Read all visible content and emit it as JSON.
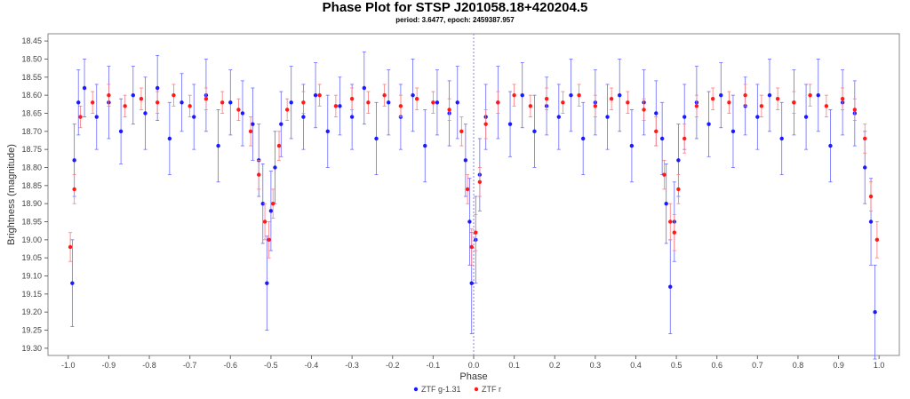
{
  "chart_data": {
    "type": "scatter",
    "title": "Phase Plot for STSP J201058.18+420204.5",
    "subtitle": "period: 3.6477, epoch: 2459387.957",
    "xlabel": "Phase",
    "ylabel": "Brightness (magnitude)",
    "xlim": [
      -1.05,
      1.05
    ],
    "ylim": [
      19.32,
      18.43
    ],
    "y_inverted": true,
    "x_ticks": [
      -1.0,
      -0.9,
      -0.8,
      -0.7,
      -0.6,
      -0.5,
      -0.4,
      -0.3,
      -0.2,
      -0.1,
      0.0,
      0.1,
      0.2,
      0.3,
      0.4,
      0.5,
      0.6,
      0.7,
      0.8,
      0.9,
      1.0
    ],
    "x_tick_labels": [
      "-1.0",
      "-0.9",
      "-0.8",
      "-0.7",
      "-0.6",
      "-0.5",
      "-0.4",
      "-0.3",
      "-0.2",
      "-0.1",
      "0.0",
      "0.1",
      "0.2",
      "0.3",
      "0.4",
      "0.5",
      "0.6",
      "0.7",
      "0.8",
      "0.9",
      "1.0"
    ],
    "y_ticks": [
      18.45,
      18.5,
      18.55,
      18.6,
      18.65,
      18.7,
      18.75,
      18.8,
      18.85,
      18.9,
      18.95,
      19.0,
      19.05,
      19.1,
      19.15,
      19.2,
      19.25,
      19.3
    ],
    "y_tick_labels": [
      "18.45",
      "18.50",
      "18.55",
      "18.60",
      "18.65",
      "18.70",
      "18.75",
      "18.80",
      "18.85",
      "18.90",
      "18.95",
      "19.00",
      "19.05",
      "19.10",
      "19.15",
      "19.20",
      "19.25",
      "19.30"
    ],
    "reference_line_x": 0.0,
    "legend_position": "bottom-center",
    "series": [
      {
        "name": "ZTF g-1.31",
        "color": "#1a1aff",
        "errorbar_color": "#6a6aff",
        "points": [
          [
            -0.99,
            19.12,
            0.12
          ],
          [
            -0.985,
            18.78,
            0.1
          ],
          [
            -0.975,
            18.62,
            0.09
          ],
          [
            -0.96,
            18.58,
            0.08
          ],
          [
            -0.93,
            18.66,
            0.09
          ],
          [
            -0.9,
            18.62,
            0.1
          ],
          [
            -0.87,
            18.7,
            0.09
          ],
          [
            -0.84,
            18.6,
            0.08
          ],
          [
            -0.81,
            18.65,
            0.1
          ],
          [
            -0.78,
            18.58,
            0.09
          ],
          [
            -0.75,
            18.72,
            0.1
          ],
          [
            -0.72,
            18.62,
            0.08
          ],
          [
            -0.69,
            18.66,
            0.09
          ],
          [
            -0.66,
            18.6,
            0.1
          ],
          [
            -0.63,
            18.74,
            0.1
          ],
          [
            -0.6,
            18.62,
            0.09
          ],
          [
            -0.57,
            18.65,
            0.09
          ],
          [
            -0.545,
            18.68,
            0.1
          ],
          [
            -0.53,
            18.78,
            0.1
          ],
          [
            -0.52,
            18.9,
            0.11
          ],
          [
            -0.51,
            19.12,
            0.13
          ],
          [
            -0.5,
            18.92,
            0.11
          ],
          [
            -0.49,
            18.8,
            0.1
          ],
          [
            -0.475,
            18.68,
            0.09
          ],
          [
            -0.45,
            18.62,
            0.1
          ],
          [
            -0.42,
            18.66,
            0.09
          ],
          [
            -0.39,
            18.6,
            0.09
          ],
          [
            -0.36,
            18.7,
            0.1
          ],
          [
            -0.33,
            18.63,
            0.08
          ],
          [
            -0.3,
            18.66,
            0.09
          ],
          [
            -0.27,
            18.58,
            0.1
          ],
          [
            -0.24,
            18.72,
            0.1
          ],
          [
            -0.21,
            18.62,
            0.09
          ],
          [
            -0.18,
            18.66,
            0.09
          ],
          [
            -0.15,
            18.6,
            0.1
          ],
          [
            -0.12,
            18.74,
            0.1
          ],
          [
            -0.09,
            18.62,
            0.09
          ],
          [
            -0.06,
            18.65,
            0.09
          ],
          [
            -0.04,
            18.62,
            0.1
          ],
          [
            -0.02,
            18.78,
            0.1
          ],
          [
            -0.01,
            18.95,
            0.12
          ],
          [
            -0.005,
            19.12,
            0.14
          ],
          [
            0.005,
            19.0,
            0.12
          ],
          [
            0.015,
            18.82,
            0.1
          ],
          [
            0.03,
            18.66,
            0.09
          ],
          [
            0.06,
            18.62,
            0.1
          ],
          [
            0.09,
            18.68,
            0.09
          ],
          [
            0.12,
            18.6,
            0.09
          ],
          [
            0.15,
            18.7,
            0.1
          ],
          [
            0.18,
            18.63,
            0.08
          ],
          [
            0.21,
            18.66,
            0.09
          ],
          [
            0.24,
            18.6,
            0.1
          ],
          [
            0.27,
            18.72,
            0.1
          ],
          [
            0.3,
            18.62,
            0.09
          ],
          [
            0.33,
            18.66,
            0.09
          ],
          [
            0.36,
            18.6,
            0.1
          ],
          [
            0.39,
            18.74,
            0.1
          ],
          [
            0.42,
            18.62,
            0.09
          ],
          [
            0.45,
            18.65,
            0.09
          ],
          [
            0.465,
            18.72,
            0.1
          ],
          [
            0.475,
            18.9,
            0.11
          ],
          [
            0.485,
            19.13,
            0.13
          ],
          [
            0.495,
            18.95,
            0.11
          ],
          [
            0.505,
            18.78,
            0.1
          ],
          [
            0.52,
            18.66,
            0.09
          ],
          [
            0.55,
            18.62,
            0.1
          ],
          [
            0.58,
            18.68,
            0.09
          ],
          [
            0.61,
            18.6,
            0.09
          ],
          [
            0.64,
            18.7,
            0.1
          ],
          [
            0.67,
            18.63,
            0.08
          ],
          [
            0.7,
            18.66,
            0.09
          ],
          [
            0.73,
            18.6,
            0.1
          ],
          [
            0.76,
            18.72,
            0.1
          ],
          [
            0.79,
            18.62,
            0.09
          ],
          [
            0.82,
            18.66,
            0.09
          ],
          [
            0.85,
            18.6,
            0.1
          ],
          [
            0.88,
            18.74,
            0.1
          ],
          [
            0.91,
            18.62,
            0.09
          ],
          [
            0.94,
            18.65,
            0.09
          ],
          [
            0.965,
            18.8,
            0.1
          ],
          [
            0.98,
            18.95,
            0.12
          ],
          [
            0.99,
            19.2,
            0.13
          ]
        ]
      },
      {
        "name": "ZTF r",
        "color": "#ff1a1a",
        "errorbar_color": "#ff7a7a",
        "points": [
          [
            -0.995,
            19.02,
            0.04
          ],
          [
            -0.985,
            18.86,
            0.04
          ],
          [
            -0.97,
            18.66,
            0.03
          ],
          [
            -0.94,
            18.62,
            0.03
          ],
          [
            -0.9,
            18.6,
            0.03
          ],
          [
            -0.86,
            18.63,
            0.03
          ],
          [
            -0.82,
            18.61,
            0.03
          ],
          [
            -0.78,
            18.62,
            0.03
          ],
          [
            -0.74,
            18.6,
            0.03
          ],
          [
            -0.7,
            18.63,
            0.03
          ],
          [
            -0.66,
            18.61,
            0.03
          ],
          [
            -0.62,
            18.62,
            0.03
          ],
          [
            -0.58,
            18.64,
            0.03
          ],
          [
            -0.55,
            18.7,
            0.04
          ],
          [
            -0.53,
            18.82,
            0.04
          ],
          [
            -0.515,
            18.95,
            0.05
          ],
          [
            -0.505,
            19.0,
            0.05
          ],
          [
            -0.495,
            18.9,
            0.04
          ],
          [
            -0.48,
            18.74,
            0.04
          ],
          [
            -0.46,
            18.64,
            0.03
          ],
          [
            -0.42,
            18.62,
            0.03
          ],
          [
            -0.38,
            18.6,
            0.03
          ],
          [
            -0.34,
            18.63,
            0.03
          ],
          [
            -0.3,
            18.61,
            0.03
          ],
          [
            -0.26,
            18.62,
            0.03
          ],
          [
            -0.22,
            18.6,
            0.03
          ],
          [
            -0.18,
            18.63,
            0.03
          ],
          [
            -0.14,
            18.61,
            0.03
          ],
          [
            -0.1,
            18.62,
            0.03
          ],
          [
            -0.06,
            18.64,
            0.03
          ],
          [
            -0.03,
            18.7,
            0.04
          ],
          [
            -0.015,
            18.86,
            0.04
          ],
          [
            -0.005,
            19.02,
            0.05
          ],
          [
            0.005,
            18.98,
            0.05
          ],
          [
            0.015,
            18.84,
            0.04
          ],
          [
            0.03,
            18.68,
            0.04
          ],
          [
            0.06,
            18.62,
            0.03
          ],
          [
            0.1,
            18.6,
            0.03
          ],
          [
            0.14,
            18.63,
            0.03
          ],
          [
            0.18,
            18.61,
            0.03
          ],
          [
            0.22,
            18.62,
            0.03
          ],
          [
            0.26,
            18.6,
            0.03
          ],
          [
            0.3,
            18.63,
            0.03
          ],
          [
            0.34,
            18.61,
            0.03
          ],
          [
            0.38,
            18.62,
            0.03
          ],
          [
            0.42,
            18.64,
            0.03
          ],
          [
            0.45,
            18.7,
            0.04
          ],
          [
            0.47,
            18.82,
            0.04
          ],
          [
            0.485,
            18.95,
            0.05
          ],
          [
            0.495,
            18.98,
            0.05
          ],
          [
            0.505,
            18.86,
            0.04
          ],
          [
            0.52,
            18.72,
            0.04
          ],
          [
            0.55,
            18.63,
            0.03
          ],
          [
            0.59,
            18.61,
            0.03
          ],
          [
            0.63,
            18.62,
            0.03
          ],
          [
            0.67,
            18.6,
            0.03
          ],
          [
            0.71,
            18.63,
            0.03
          ],
          [
            0.75,
            18.61,
            0.03
          ],
          [
            0.79,
            18.62,
            0.03
          ],
          [
            0.83,
            18.6,
            0.03
          ],
          [
            0.87,
            18.63,
            0.03
          ],
          [
            0.91,
            18.61,
            0.03
          ],
          [
            0.94,
            18.64,
            0.03
          ],
          [
            0.965,
            18.72,
            0.04
          ],
          [
            0.98,
            18.88,
            0.04
          ],
          [
            0.995,
            19.0,
            0.05
          ]
        ]
      }
    ]
  }
}
